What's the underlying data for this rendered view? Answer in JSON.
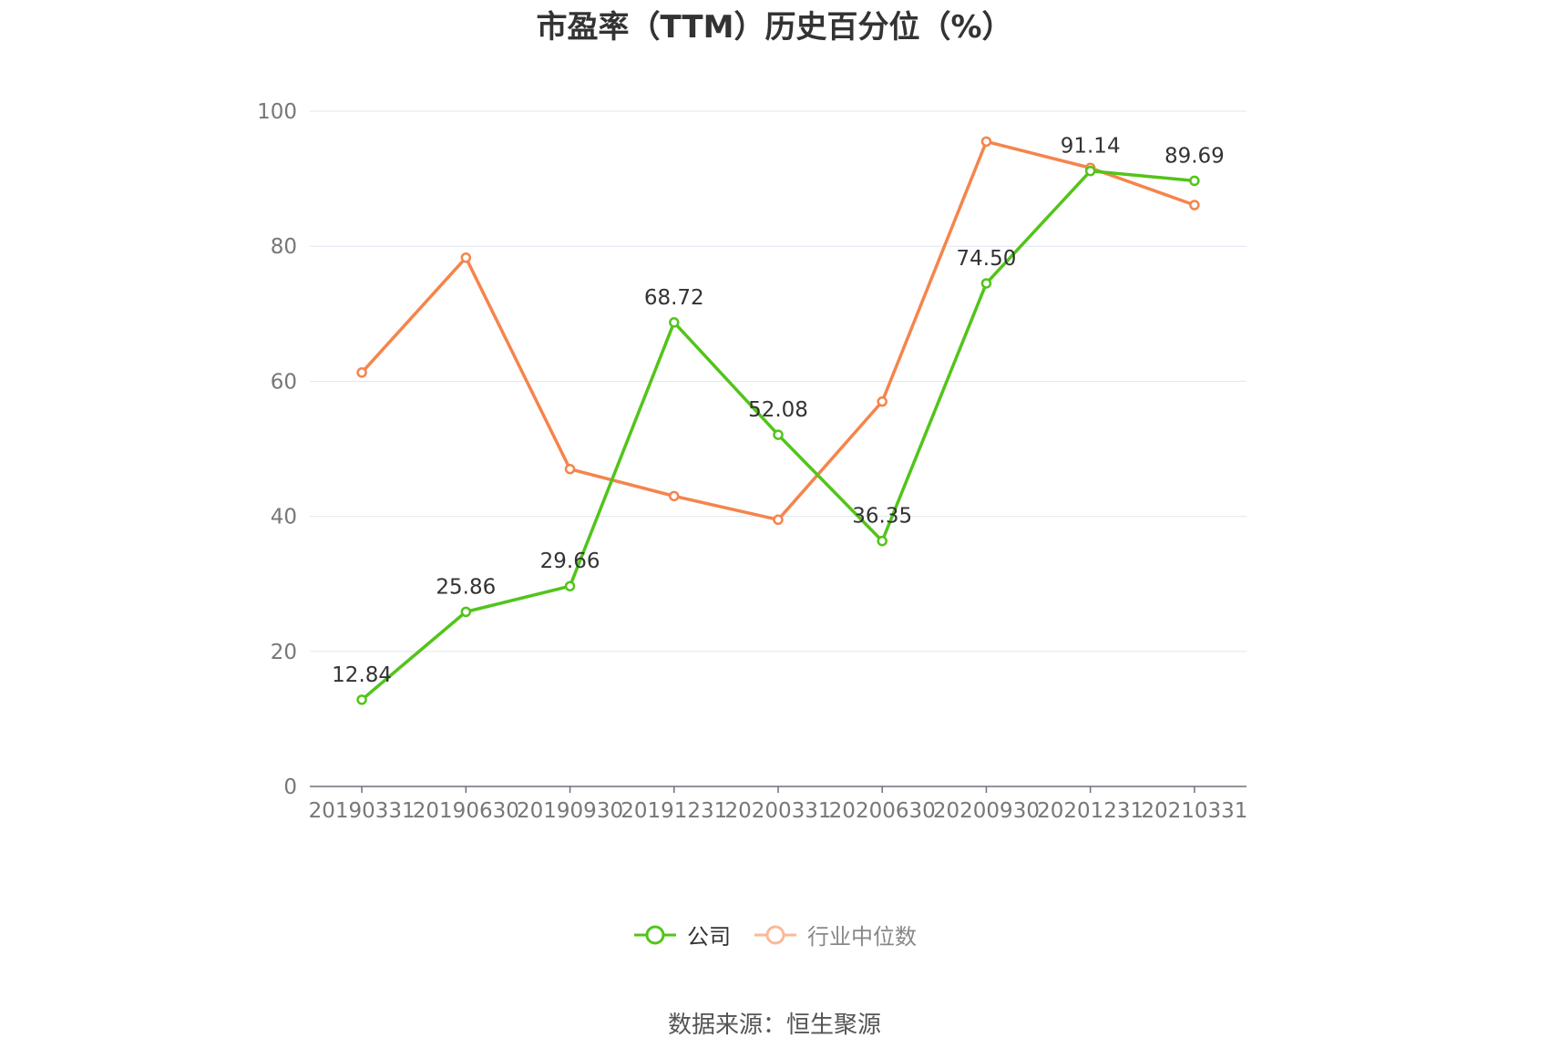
{
  "title": "市盈率（TTM）历史百分位（%）",
  "source": "数据来源：恒生聚源",
  "chart_data": {
    "type": "line",
    "title": "市盈率（TTM）历史百分位（%）",
    "categories": [
      "20190331",
      "20190630",
      "20190930",
      "20191231",
      "20200331",
      "20200630",
      "20200930",
      "20201231",
      "20210331"
    ],
    "ylim": [
      0,
      100
    ],
    "yticks": [
      0,
      20,
      40,
      60,
      80,
      100
    ],
    "grid": true,
    "legend_position": "bottom",
    "series": [
      {
        "name": "公司",
        "color": "#52c41a",
        "values": [
          12.84,
          25.86,
          29.66,
          68.72,
          52.08,
          36.35,
          74.5,
          91.14,
          89.69
        ],
        "labels": [
          "12.84",
          "25.86",
          "29.66",
          "68.72",
          "52.08",
          "36.35",
          "74.50",
          "91.14",
          "89.69"
        ]
      },
      {
        "name": "行业中位数",
        "color": "#f5844c",
        "values": [
          61.3,
          78.3,
          47.0,
          43.0,
          39.5,
          57.0,
          95.5,
          91.6,
          86.1
        ]
      }
    ]
  },
  "legend": {
    "company": "公司",
    "industry": "行业中位数"
  }
}
